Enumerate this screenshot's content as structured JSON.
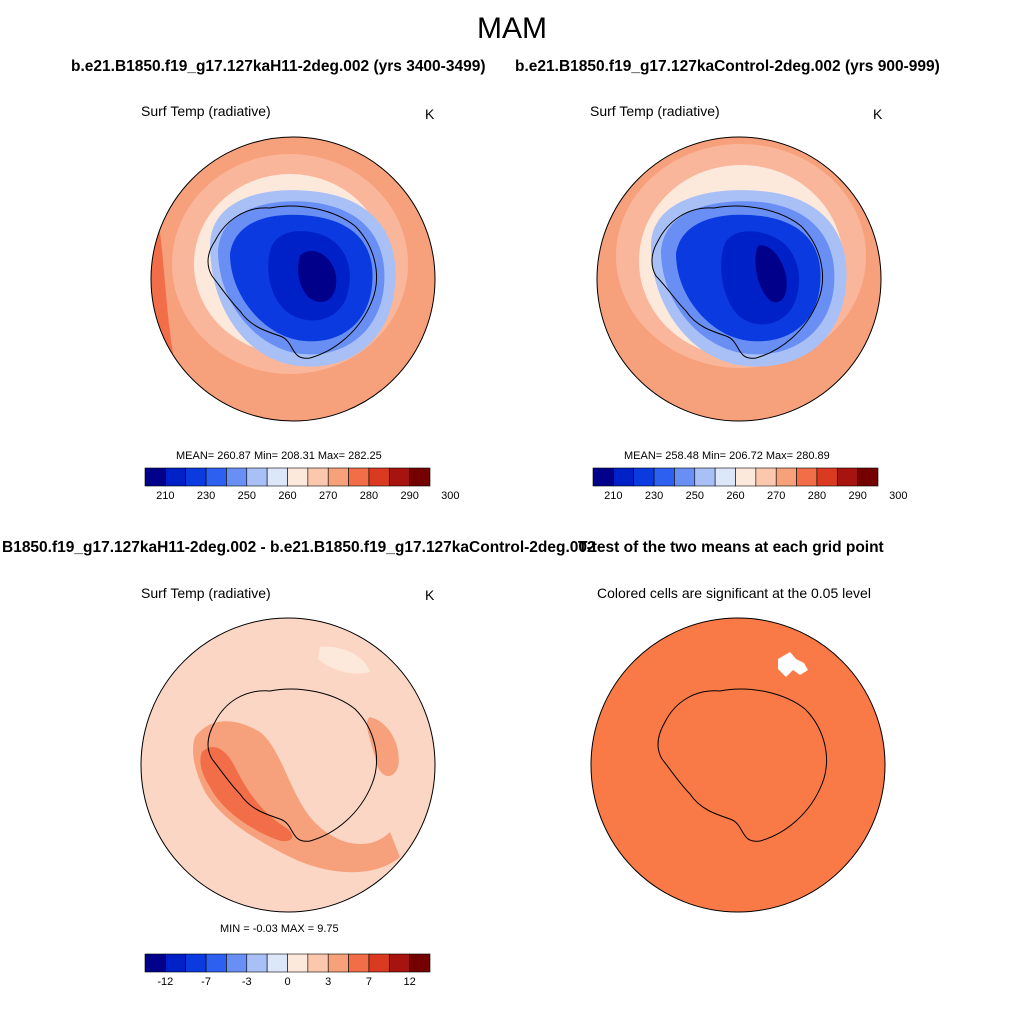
{
  "figure": {
    "title": "MAM",
    "case_title_left": "b.e21.B1850.f19_g17.127kaH11-2deg.002 (yrs 3400-3499)",
    "case_title_right": "b.e21.B1850.f19_g17.127kaControl-2deg.002 (yrs 900-999)",
    "diff_title": "B1850.f19_g17.127kaH11-2deg.002 - b.e21.B1850.f19_g17.127kaControl-2deg.002",
    "ttest_title": "T-test of the two means at each grid point"
  },
  "panels": {
    "top_left": {
      "label": "Surf Temp (radiative)",
      "units": "K",
      "stats": "MEAN= 260.87  Min= 208.31  Max= 282.25"
    },
    "top_right": {
      "label": "Surf Temp (radiative)",
      "units": "K",
      "stats": "MEAN= 258.48  Min= 206.72  Max= 280.89"
    },
    "bottom_left": {
      "label": "Surf Temp (radiative)",
      "units": "K",
      "stats": "MIN =  -0.03 MAX =   9.75"
    },
    "bottom_right": {
      "label": "Colored cells are significant at the 0.05 level"
    }
  },
  "colorbars": {
    "abs": {
      "colors": [
        "#00008b",
        "#0021c8",
        "#0b3be0",
        "#2d60f0",
        "#6a8ff4",
        "#a9c0f7",
        "#dde7fa",
        "#fde9dc",
        "#fbc8ae",
        "#f7a07c",
        "#f26e48",
        "#d93a20",
        "#a71410",
        "#740000"
      ],
      "ticks": [
        "210",
        "230",
        "250",
        "260",
        "270",
        "280",
        "290",
        "300"
      ]
    },
    "diff": {
      "colors": [
        "#00008b",
        "#0021c8",
        "#0b3be0",
        "#2d60f0",
        "#6a8ff4",
        "#a9c0f7",
        "#dde7fa",
        "#fde9dc",
        "#fbc8ae",
        "#f7a07c",
        "#f26e48",
        "#d93a20",
        "#a71410",
        "#740000"
      ],
      "ticks": [
        "-12",
        "-7",
        "-3",
        "0",
        "3",
        "7",
        "12"
      ]
    }
  },
  "map_colors": {
    "ocean_warm": "#f9b69a",
    "ocean_mid": "#f7a07c",
    "ocean_warmest": "#f26e48",
    "cold_dark": "#00008b",
    "cold_mid": "#0b3be0",
    "cold_light": "#6a8ff4",
    "cold_pale": "#a9c0f7",
    "diff_base": "#fcd6c4",
    "diff_warm": "#f7a07c",
    "diff_hot": "#f26e48",
    "signif": "#f97a46"
  }
}
